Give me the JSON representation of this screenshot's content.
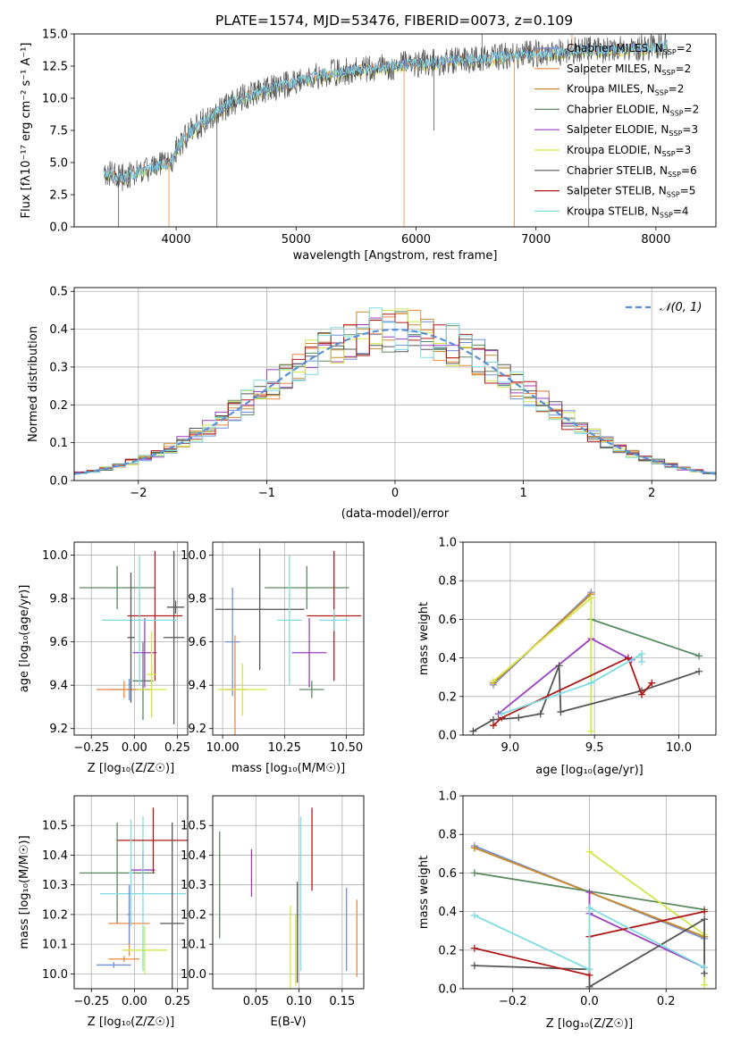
{
  "title": "PLATE=1574, MJD=53476, FIBERID=0073, z=0.109",
  "colors": {
    "Chabrier MILES": "#6f8fd6",
    "Salpeter MILES": "#f0883e",
    "Kroupa MILES": "#c88a2e",
    "Chabrier ELODIE": "#5a8a60",
    "Salpeter ELODIE": "#9b3fc0",
    "Kroupa ELODIE": "#d2e64a",
    "Chabrier STELIB": "#555555",
    "Salpeter STELIB": "#b01818",
    "Kroupa STELIB": "#7fdce0"
  },
  "chart_data": [
    {
      "type": "line",
      "xlabel": "wavelength [Angstrom, rest frame]",
      "ylabel": "Flux [f_λ 10^-17 erg cm^-2 s^-1 A^-1]",
      "xlim": [
        3150,
        8500
      ],
      "ylim": [
        0,
        15
      ],
      "xticks": [
        4000,
        5000,
        6000,
        7000,
        8000
      ],
      "yticks": [
        "0.0",
        "2.5",
        "5.0",
        "7.5",
        "10.0",
        "12.5",
        "15.0"
      ],
      "legend_position": "right",
      "legend": [
        {
          "name": "Chabrier MILES",
          "label": "Chabrier MILES, N_SSP=2"
        },
        {
          "name": "Salpeter MILES",
          "label": "Salpeter MILES, N_SSP=2"
        },
        {
          "name": "Kroupa MILES",
          "label": "Kroupa MILES, N_SSP=2"
        },
        {
          "name": "Chabrier ELODIE",
          "label": "Chabrier ELODIE, N_SSP=2"
        },
        {
          "name": "Salpeter ELODIE",
          "label": "Salpeter ELODIE, N_SSP=3"
        },
        {
          "name": "Kroupa ELODIE",
          "label": "Kroupa ELODIE, N_SSP=3"
        },
        {
          "name": "Chabrier STELIB",
          "label": "Chabrier STELIB, N_SSP=6"
        },
        {
          "name": "Salpeter STELIB",
          "label": "Salpeter STELIB, N_SSP=5"
        },
        {
          "name": "Kroupa STELIB",
          "label": "Kroupa STELIB, N_SSP=4"
        }
      ],
      "continuum": [
        [
          3400,
          4.2
        ],
        [
          3550,
          3.8
        ],
        [
          3700,
          4.3
        ],
        [
          3850,
          4.8
        ],
        [
          3950,
          5.0
        ],
        [
          4000,
          6.0
        ],
        [
          4100,
          7.2
        ],
        [
          4200,
          8.0
        ],
        [
          4300,
          8.6
        ],
        [
          4450,
          9.6
        ],
        [
          4600,
          10.2
        ],
        [
          4800,
          10.8
        ],
        [
          5000,
          11.3
        ],
        [
          5200,
          11.8
        ],
        [
          5500,
          12.2
        ],
        [
          5800,
          12.5
        ],
        [
          6000,
          12.7
        ],
        [
          6300,
          12.9
        ],
        [
          6600,
          13.1
        ],
        [
          6800,
          13.3
        ],
        [
          7000,
          13.5
        ],
        [
          7300,
          13.7
        ],
        [
          7600,
          13.8
        ],
        [
          7900,
          13.9
        ],
        [
          8100,
          14.1
        ]
      ],
      "spikes": [
        [
          3520,
          0
        ],
        [
          3940,
          0
        ],
        [
          4340,
          0
        ],
        [
          5900,
          0
        ],
        [
          6150,
          7.5
        ],
        [
          6820,
          0
        ],
        [
          7440,
          0
        ],
        [
          7300,
          15
        ],
        [
          6550,
          15
        ]
      ]
    },
    {
      "type": "histogram",
      "xlabel": "(data-model)/error",
      "ylabel": "Normed distribution",
      "xlim": [
        -2.5,
        2.5
      ],
      "ylim": [
        0,
        0.51
      ],
      "xticks": [
        "−2",
        "−1",
        "0",
        "1",
        "2"
      ],
      "yticks": [
        "0.0",
        "0.1",
        "0.2",
        "0.3",
        "0.4",
        "0.5"
      ],
      "grid": true,
      "bin_width": 0.1,
      "reference": {
        "label": "𝒩(0, 1)",
        "mean": 0,
        "sigma": 1,
        "color": "#5b8fd6"
      },
      "legend_position": "top-right"
    },
    {
      "type": "scatter",
      "name": "age-vs-Z",
      "xlabel": "Z [log10(Z/Z☉)]",
      "ylabel": "age [log10(age/yr)]",
      "xlim": [
        -0.35,
        0.31
      ],
      "ylim": [
        9.17,
        10.06
      ],
      "xticks": [
        "−0.25",
        "0.00",
        "0.25"
      ],
      "yticks": [
        "9.2",
        "9.4",
        "9.6",
        "9.8",
        "10.0"
      ],
      "grid": true
    },
    {
      "type": "scatter",
      "name": "age-vs-mass",
      "xlabel": "mass [log10(M/M☉)]",
      "ylabel": "",
      "xlim": [
        9.96,
        10.57
      ],
      "ylim": [
        9.17,
        10.06
      ],
      "xticks": [
        "10.00",
        "10.25",
        "10.50"
      ],
      "yticks": [
        "9.2",
        "9.4",
        "9.6",
        "9.8",
        "10.0"
      ],
      "grid": true
    },
    {
      "type": "line",
      "name": "weight-vs-age",
      "xlabel": "age [log10(age/yr)]",
      "ylabel": "mass weight",
      "xlim": [
        8.72,
        10.22
      ],
      "ylim": [
        0,
        1
      ],
      "xticks": [
        "9.0",
        "9.5",
        "10.0"
      ],
      "yticks": [
        "0.0",
        "0.2",
        "0.4",
        "0.6",
        "0.8",
        "1.0"
      ],
      "grid": true,
      "series": [
        {
          "name": "Chabrier MILES",
          "x": [
            8.9,
            9.48
          ],
          "y": [
            0.26,
            0.74
          ]
        },
        {
          "name": "Salpeter MILES",
          "x": [
            8.9,
            9.48
          ],
          "y": [
            0.27,
            0.73
          ]
        },
        {
          "name": "Kroupa MILES",
          "x": [
            8.9,
            9.48
          ],
          "y": [
            0.27,
            0.73
          ]
        },
        {
          "name": "Chabrier ELODIE",
          "x": [
            9.48,
            10.12
          ],
          "y": [
            0.6,
            0.41
          ]
        },
        {
          "name": "Salpeter ELODIE",
          "x": [
            8.93,
            9.48,
            9.72
          ],
          "y": [
            0.11,
            0.5,
            0.39
          ]
        },
        {
          "name": "Kroupa ELODIE",
          "x": [
            8.9,
            9.48,
            9.48
          ],
          "y": [
            0.28,
            0.71,
            0.02
          ]
        },
        {
          "name": "Chabrier STELIB",
          "x": [
            8.78,
            8.9,
            9.05,
            9.18,
            9.29,
            9.3,
            9.78,
            10.12
          ],
          "y": [
            0.02,
            0.08,
            0.09,
            0.11,
            0.36,
            0.12,
            0.23,
            0.33
          ]
        },
        {
          "name": "Salpeter STELIB",
          "x": [
            8.9,
            8.95,
            9.7,
            9.78,
            9.84
          ],
          "y": [
            0.05,
            0.09,
            0.4,
            0.21,
            0.27
          ]
        },
        {
          "name": "Kroupa STELIB",
          "x": [
            8.95,
            9.48,
            9.78,
            9.78
          ],
          "y": [
            0.11,
            0.27,
            0.42,
            0.38
          ]
        }
      ]
    },
    {
      "type": "scatter",
      "name": "mass-vs-Z",
      "xlabel": "Z [log10(Z/Z☉)]",
      "ylabel": "mass [log10(M/M☉)]",
      "xlim": [
        -0.35,
        0.31
      ],
      "ylim": [
        9.95,
        10.6
      ],
      "xticks": [
        "−0.25",
        "0.00",
        "0.25"
      ],
      "yticks": [
        "10.0",
        "10.1",
        "10.2",
        "10.3",
        "10.4",
        "10.5"
      ],
      "grid": true
    },
    {
      "type": "scatter",
      "name": "mass-vs-EBV",
      "xlabel": "E(B-V)",
      "ylabel": "",
      "xlim": [
        0.0,
        0.175
      ],
      "ylim": [
        9.95,
        10.6
      ],
      "xticks": [
        "0.05",
        "0.10",
        "0.15"
      ],
      "yticks": [
        "10.0",
        "10.1",
        "10.2",
        "10.3",
        "10.4",
        "10.5"
      ],
      "grid": true,
      "series": [
        {
          "name": "Chabrier ELODIE",
          "x": [
            0.008
          ],
          "y": [
            10.3
          ],
          "err": 0.18
        },
        {
          "name": "Salpeter ELODIE",
          "x": [
            0.045
          ],
          "y": [
            10.34
          ],
          "err": 0.08
        },
        {
          "name": "Kroupa ELODIE",
          "x": [
            0.09
          ],
          "y": [
            10.09
          ],
          "err": 0.14
        },
        {
          "name": "Kroupa ELODIE",
          "x": [
            0.096
          ],
          "y": [
            10.08
          ],
          "err": 0.12
        },
        {
          "name": "Chabrier STELIB",
          "x": [
            0.098
          ],
          "y": [
            10.14
          ],
          "err": 0.17
        },
        {
          "name": "Kroupa STELIB",
          "x": [
            0.102
          ],
          "y": [
            10.27
          ],
          "err": 0.26
        },
        {
          "name": "Salpeter STELIB",
          "x": [
            0.115
          ],
          "y": [
            10.42
          ],
          "err": 0.14
        },
        {
          "name": "Chabrier MILES",
          "x": [
            0.155
          ],
          "y": [
            10.15
          ],
          "err": 0.14
        },
        {
          "name": "Salpeter MILES",
          "x": [
            0.167
          ],
          "y": [
            10.12
          ],
          "err": 0.13
        }
      ]
    },
    {
      "type": "line",
      "name": "weight-vs-Z",
      "xlabel": "Z [log10(Z/Z☉)]",
      "ylabel": "mass weight",
      "xlim": [
        -0.33,
        0.33
      ],
      "ylim": [
        0,
        1
      ],
      "xticks": [
        "−0.2",
        "0.0",
        "0.2"
      ],
      "yticks": [
        "0.0",
        "0.2",
        "0.4",
        "0.6",
        "0.8",
        "1.0"
      ],
      "grid": true,
      "series": [
        {
          "name": "Chabrier MILES",
          "x": [
            -0.3,
            0.3
          ],
          "y": [
            0.74,
            0.26
          ]
        },
        {
          "name": "Salpeter MILES",
          "x": [
            -0.3,
            0.3
          ],
          "y": [
            0.73,
            0.27
          ]
        },
        {
          "name": "Kroupa MILES",
          "x": [
            -0.3,
            0.3
          ],
          "y": [
            0.73,
            0.27
          ]
        },
        {
          "name": "Chabrier ELODIE",
          "x": [
            -0.3,
            0.3
          ],
          "y": [
            0.6,
            0.41
          ]
        },
        {
          "name": "Salpeter ELODIE",
          "x": [
            0.0,
            0.0,
            0.3
          ],
          "y": [
            0.5,
            0.39,
            0.11
          ]
        },
        {
          "name": "Kroupa ELODIE",
          "x": [
            0.0,
            0.3,
            0.3
          ],
          "y": [
            0.71,
            0.28,
            0.02
          ]
        },
        {
          "name": "Chabrier STELIB",
          "x": [
            -0.3,
            0.0,
            0.0,
            0.3,
            0.3
          ],
          "y": [
            0.12,
            0.1,
            0.01,
            0.36,
            0.08
          ]
        },
        {
          "name": "Salpeter STELIB",
          "x": [
            -0.3,
            0.0,
            0.0,
            0.3
          ],
          "y": [
            0.21,
            0.07,
            0.27,
            0.4
          ]
        },
        {
          "name": "Kroupa STELIB",
          "x": [
            -0.3,
            0.0,
            0.0,
            0.3
          ],
          "y": [
            0.38,
            0.1,
            0.42,
            0.11
          ]
        }
      ]
    }
  ],
  "errorbars": {
    "age_Z": [
      {
        "name": "Chabrier MILES",
        "z": -0.03,
        "zerr": 0.12,
        "age": 9.38,
        "ageerr": 0.05
      },
      {
        "name": "Salpeter MILES",
        "z": -0.06,
        "zerr": 0.16,
        "age": 9.38,
        "ageerr": 0.04
      },
      {
        "name": "Chabrier ELODIE",
        "z": 0.05,
        "zerr": 0.06,
        "age": 9.42,
        "ageerr": 0.18
      },
      {
        "name": "Salpeter ELODIE",
        "z": 0.06,
        "zerr": 0.07,
        "age": 9.55,
        "ageerr": 0.16
      },
      {
        "name": "Kroupa ELODIE",
        "z": 0.1,
        "zerr": 0.09,
        "age": 9.38,
        "ageerr": 0.12
      },
      {
        "name": "Chabrier STELIB",
        "z": 0.23,
        "zerr": 0.06,
        "age": 9.62,
        "ageerr": 0.4
      },
      {
        "name": "Chabrier ELODIE",
        "z": -0.1,
        "zerr": 0.22,
        "age": 9.85,
        "ageerr": 0.1
      },
      {
        "name": "Salpeter STELIB",
        "z": 0.12,
        "zerr": 0.16,
        "age": 9.72,
        "ageerr": 0.3
      },
      {
        "name": "Kroupa STELIB",
        "z": 0.03,
        "zerr": 0.22,
        "age": 9.7,
        "ageerr": 0.3
      },
      {
        "name": "Chabrier STELIB",
        "z": 0.24,
        "zerr": 0.05,
        "age": 9.76,
        "ageerr": 0.03
      },
      {
        "name": "Kroupa ELODIE",
        "z": 0.1,
        "zerr": 0.03,
        "age": 9.45,
        "ageerr": 0.2
      },
      {
        "name": "Chabrier STELIB",
        "z": -0.02,
        "zerr": 0.02,
        "age": 9.62,
        "ageerr": 0.3
      }
    ],
    "age_mass": [
      {
        "name": "Chabrier MILES",
        "m": 10.04,
        "merr": 0.03,
        "age": 9.6,
        "ageerr": 0.25
      },
      {
        "name": "Salpeter MILES",
        "m": 10.05,
        "merr": 0.05,
        "age": 9.38,
        "ageerr": 0.25
      },
      {
        "name": "Kroupa ELODIE",
        "m": 10.08,
        "merr": 0.1,
        "age": 9.38,
        "ageerr": 0.12
      },
      {
        "name": "Chabrier STELIB",
        "m": 10.15,
        "merr": 0.18,
        "age": 9.75,
        "ageerr": 0.28
      },
      {
        "name": "Chabrier ELODIE",
        "m": 10.34,
        "merr": 0.17,
        "age": 9.85,
        "ageerr": 0.1
      },
      {
        "name": "Kroupa STELIB",
        "m": 10.27,
        "merr": 0.05,
        "age": 9.7,
        "ageerr": 0.3
      },
      {
        "name": "Salpeter ELODIE",
        "m": 10.35,
        "merr": 0.07,
        "age": 9.55,
        "ageerr": 0.16
      },
      {
        "name": "Salpeter STELIB",
        "m": 10.45,
        "merr": 0.11,
        "age": 9.72,
        "ageerr": 0.3
      },
      {
        "name": "Kroupa STELIB",
        "m": 10.45,
        "merr": 0.06,
        "age": 9.7,
        "ageerr": 0.05
      },
      {
        "name": "Chabrier ELODIE",
        "m": 10.36,
        "merr": 0.05,
        "age": 9.38,
        "ageerr": 0.04
      }
    ],
    "mass_Z": [
      {
        "name": "Chabrier MILES",
        "z": -0.12,
        "zerr": 0.1,
        "m": 10.03,
        "merr": 0.01
      },
      {
        "name": "Salpeter MILES",
        "z": -0.06,
        "zerr": 0.09,
        "m": 10.05,
        "merr": 0.01
      },
      {
        "name": "Salpeter MILES",
        "z": -0.03,
        "zerr": 0.12,
        "m": 10.17,
        "merr": 0.11
      },
      {
        "name": "Kroupa ELODIE",
        "z": 0.06,
        "zerr": 0.13,
        "m": 10.08,
        "merr": 0.08
      },
      {
        "name": "Chabrier ELODIE",
        "z": -0.1,
        "zerr": 0.22,
        "m": 10.34,
        "merr": 0.17
      },
      {
        "name": "Salpeter ELODIE",
        "z": 0.05,
        "zerr": 0.07,
        "m": 10.35,
        "merr": 0.07
      },
      {
        "name": "Kroupa STELIB",
        "z": 0.05,
        "zerr": 0.25,
        "m": 10.27,
        "merr": 0.26
      },
      {
        "name": "Salpeter STELIB",
        "z": 0.11,
        "zerr": 0.21,
        "m": 10.45,
        "merr": 0.11
      },
      {
        "name": "Chabrier STELIB",
        "z": 0.22,
        "zerr": 0.07,
        "m": 10.17,
        "merr": 0.34
      },
      {
        "name": "Chabrier MILES",
        "z": -0.03,
        "zerr": 0.01,
        "m": 10.2,
        "merr": 0.1
      },
      {
        "name": "Kroupa STELIB",
        "z": -0.02,
        "zerr": 0.01,
        "m": 10.34,
        "merr": 0.18
      }
    ]
  }
}
